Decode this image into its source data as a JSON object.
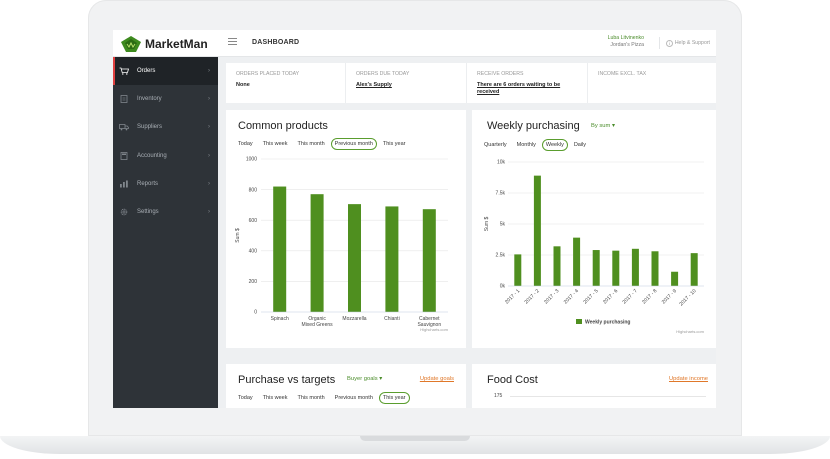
{
  "app": {
    "name": "MarketMan"
  },
  "header": {
    "page_title": "DASHBOARD",
    "user_name": "Luba Litvinenko",
    "company": "Jordan's Pizza",
    "help_label": "Help & Support"
  },
  "sidebar": {
    "items": [
      {
        "label": "Orders",
        "icon": "cart-icon",
        "active": true
      },
      {
        "label": "Inventory",
        "icon": "clipboard-icon",
        "active": false
      },
      {
        "label": "Suppliers",
        "icon": "truck-icon",
        "active": false
      },
      {
        "label": "Accounting",
        "icon": "calculator-icon",
        "active": false
      },
      {
        "label": "Reports",
        "icon": "bar-chart-icon",
        "active": false
      },
      {
        "label": "Settings",
        "icon": "gear-icon",
        "active": false
      }
    ]
  },
  "stats": [
    {
      "label": "ORDERS PLACED TODAY",
      "value": "None"
    },
    {
      "label": "ORDERS DUE TODAY",
      "value": "Alex's Supply"
    },
    {
      "label": "RECEIVE ORDERS",
      "value_line1": "There are 6 orders waiting to be",
      "value_line2": "received"
    },
    {
      "label": "INCOME EXCL. TAX",
      "value": ""
    }
  ],
  "common_products": {
    "title": "Common products",
    "tabs": [
      "Today",
      "This week",
      "This month",
      "Previous month",
      "This year"
    ],
    "active_tab": "Previous month",
    "credit": "Highcharts.com"
  },
  "weekly_purchasing": {
    "title": "Weekly purchasing",
    "dropdown_label": "By sum",
    "tabs": [
      "Quarterly",
      "Monthly",
      "Weekly",
      "Daily"
    ],
    "active_tab": "Weekly",
    "credit": "Highcharts.com"
  },
  "purchase_vs_targets": {
    "title": "Purchase vs targets",
    "dropdown_label": "Buyer goals",
    "action": "Update goals",
    "tabs": [
      "Today",
      "This week",
      "This month",
      "Previous month",
      "This year"
    ],
    "active_tab": "This year"
  },
  "food_cost": {
    "title": "Food Cost",
    "action": "Update income",
    "first_tick": "175"
  },
  "colors": {
    "bar": "#4f8f1f",
    "accent": "#5a9d2e",
    "link": "#e0782a",
    "sidebar": "#2e3338"
  },
  "chart_data": [
    {
      "type": "bar",
      "categories": [
        "Spinach",
        "Organic Mixed Greens",
        "Mozzarella",
        "Chianti",
        "Cabernet Sauvignon"
      ],
      "values": [
        820,
        770,
        705,
        690,
        672
      ],
      "ylabel": "Sum $",
      "ylim": [
        0,
        1000
      ],
      "yticks": [
        "0",
        "200",
        "400",
        "600",
        "800",
        "1000"
      ],
      "grid": true
    },
    {
      "type": "bar",
      "categories": [
        "2017 - 1",
        "2017 - 2",
        "2017 - 3",
        "2017 - 4",
        "2017 - 5",
        "2017 - 6",
        "2017 - 7",
        "2017 - 8",
        "2017 - 9",
        "2017 - 10"
      ],
      "series": [
        {
          "name": "Weekly purchasing",
          "values": [
            2550,
            8900,
            3200,
            3900,
            2900,
            2850,
            3000,
            2800,
            1150,
            2650
          ]
        }
      ],
      "ylabel": "Sum $",
      "ylim": [
        0,
        10000
      ],
      "yticks": [
        "0k",
        "2.5k",
        "5k",
        "7.5k",
        "10k"
      ],
      "legend": "bottom",
      "grid": true
    }
  ]
}
